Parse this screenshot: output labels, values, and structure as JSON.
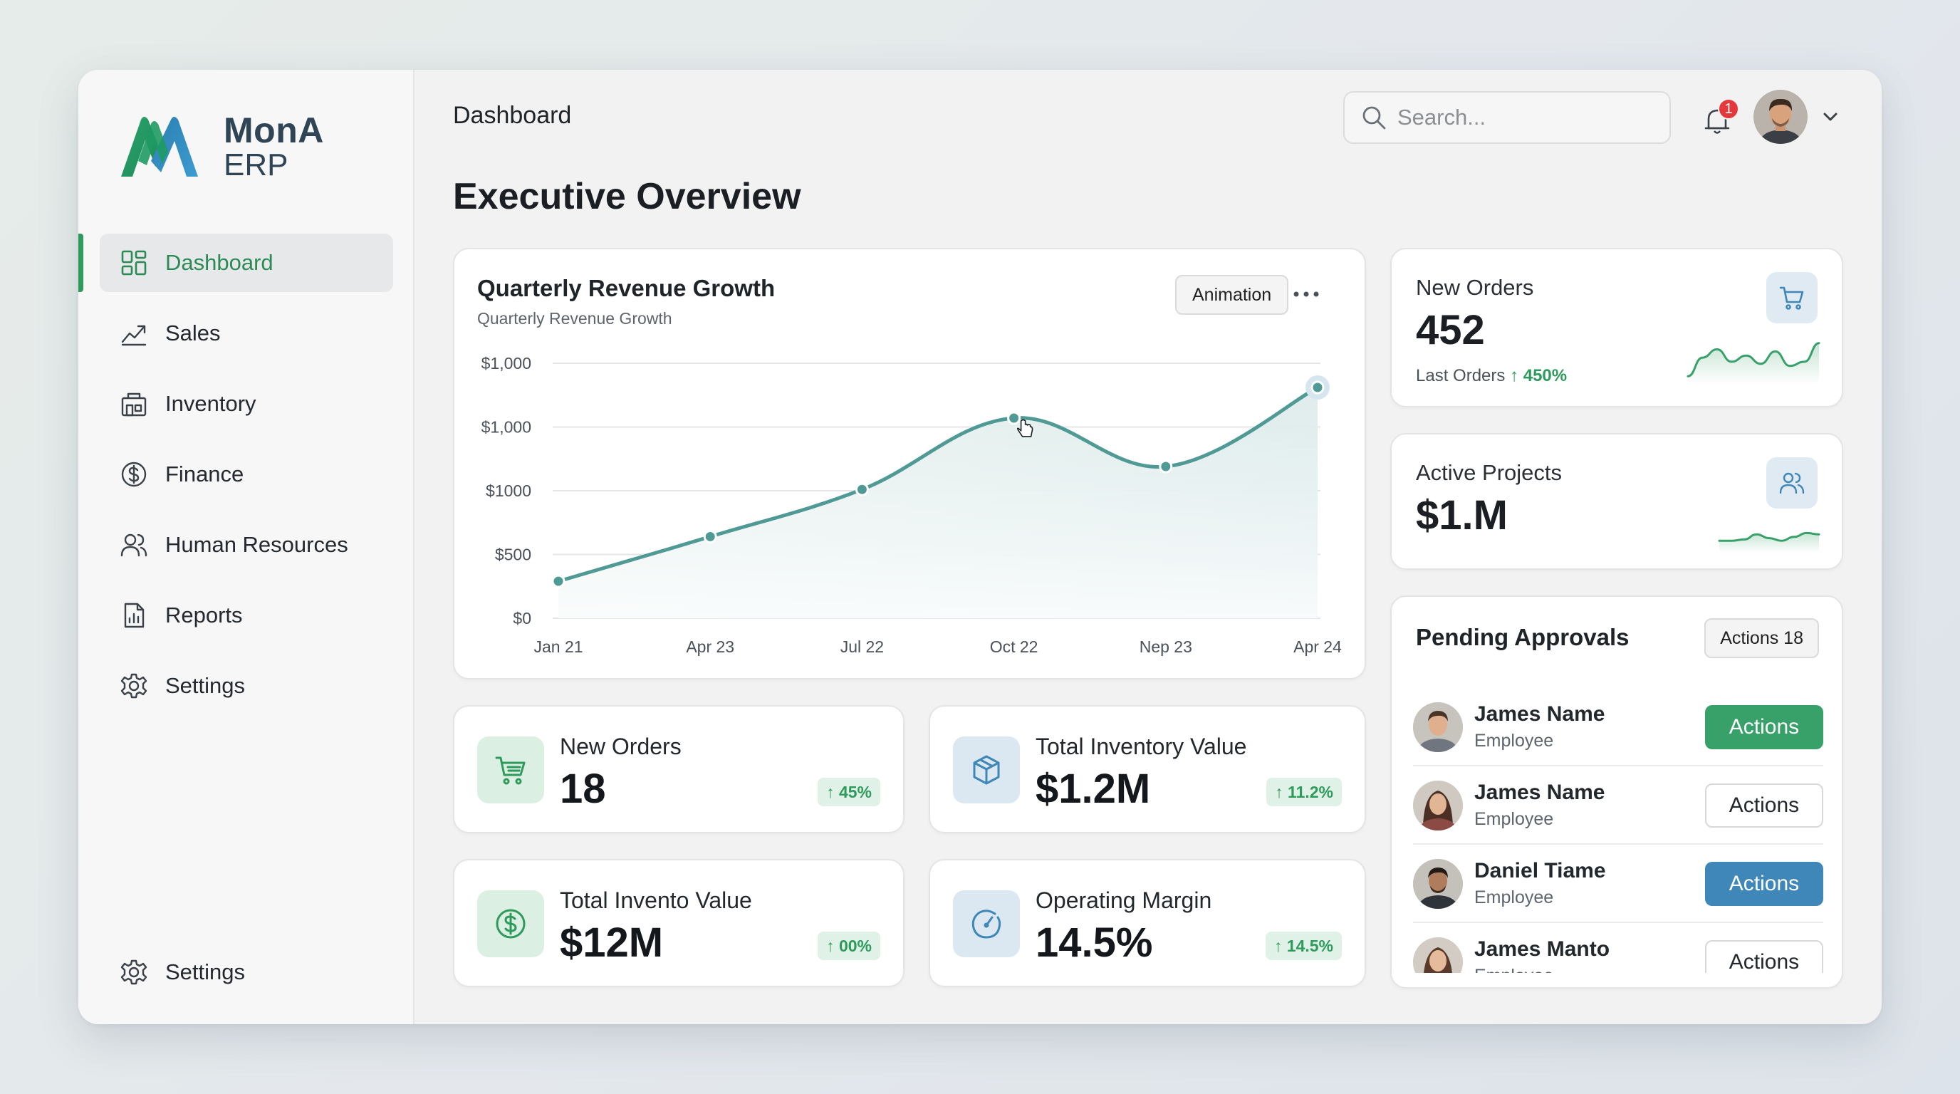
{
  "brand": {
    "name": "MonA",
    "sub": "ERP"
  },
  "sidebar": {
    "items": [
      {
        "label": "Dashboard",
        "icon": "grid-icon",
        "active": true
      },
      {
        "label": "Sales",
        "icon": "trend-icon"
      },
      {
        "label": "Inventory",
        "icon": "warehouse-icon"
      },
      {
        "label": "Finance",
        "icon": "dollar-circle-icon"
      },
      {
        "label": "Human Resources",
        "icon": "users-icon"
      },
      {
        "label": "Reports",
        "icon": "report-icon"
      },
      {
        "label": "Settings",
        "icon": "gear-icon"
      }
    ],
    "bottom": {
      "label": "Settings",
      "icon": "gear-icon"
    }
  },
  "header": {
    "title": "Dashboard",
    "search_placeholder": "Search...",
    "notifications": "1"
  },
  "page": {
    "title": "Executive Overview"
  },
  "revenue_card": {
    "title": "Quarterly Revenue Growth",
    "subtitle": "Quarterly Revenue Growth",
    "animation_label": "Animation"
  },
  "chart_data": {
    "type": "area",
    "title": "Quarterly Revenue Growth",
    "subtitle": "Quarterly Revenue Growth",
    "categories": [
      "Jan 21",
      "Apr 23",
      "Jul 22",
      "Oct 22",
      "Nep 23",
      "Apr 24"
    ],
    "y_tick_labels": [
      "$0",
      "$500",
      "$1000",
      "$1,000",
      "$1,000"
    ],
    "values": [
      290,
      640,
      1010,
      1570,
      1190,
      1810
    ],
    "ylim": [
      0,
      2000
    ],
    "grid": true,
    "colors": {
      "line": "#4f9a95",
      "fill_top": "#cfe2e6",
      "fill_bottom": "#eaf4ee"
    }
  },
  "new_orders_top": {
    "label": "New Orders",
    "value": "452",
    "foot_label": "Last Orders",
    "foot_change": "↑ 450%",
    "spark": [
      0.1,
      0.55,
      0.75,
      0.45,
      0.6,
      0.4,
      0.7,
      0.35,
      0.45,
      0.9
    ]
  },
  "active_projects": {
    "label": "Active Projects",
    "value": "$1.M",
    "spark": [
      0.3,
      0.3,
      0.35,
      0.55,
      0.4,
      0.3,
      0.45,
      0.6,
      0.55
    ]
  },
  "kpis": [
    {
      "label": "New Orders",
      "value": "18",
      "change": "↑ 45%",
      "icon": "cart-icon",
      "tone": "green"
    },
    {
      "label": "Total Inventory Value",
      "value": "$1.2M",
      "change": "↑ 11.2%",
      "icon": "box-icon",
      "tone": "blue"
    },
    {
      "label": "Total Invento Value",
      "value": "$12M",
      "change": "↑ 00%",
      "icon": "dollar-icon",
      "tone": "green"
    },
    {
      "label": "Operating Margin",
      "value": "14.5%",
      "change": "↑ 14.5%",
      "icon": "gauge-icon",
      "tone": "blue"
    }
  ],
  "approvals": {
    "title": "Pending Approvals",
    "count_label": "Actions 18",
    "rows": [
      {
        "name": "James Name",
        "role": "Employee",
        "action": "Actions",
        "style": "green"
      },
      {
        "name": "James Name",
        "role": "Employee",
        "action": "Actions",
        "style": "outline"
      },
      {
        "name": "Daniel Tiame",
        "role": "Employee",
        "action": "Actions",
        "style": "blue"
      },
      {
        "name": "James Manto",
        "role": "Employee",
        "action": "Actions",
        "style": "outline"
      }
    ]
  }
}
